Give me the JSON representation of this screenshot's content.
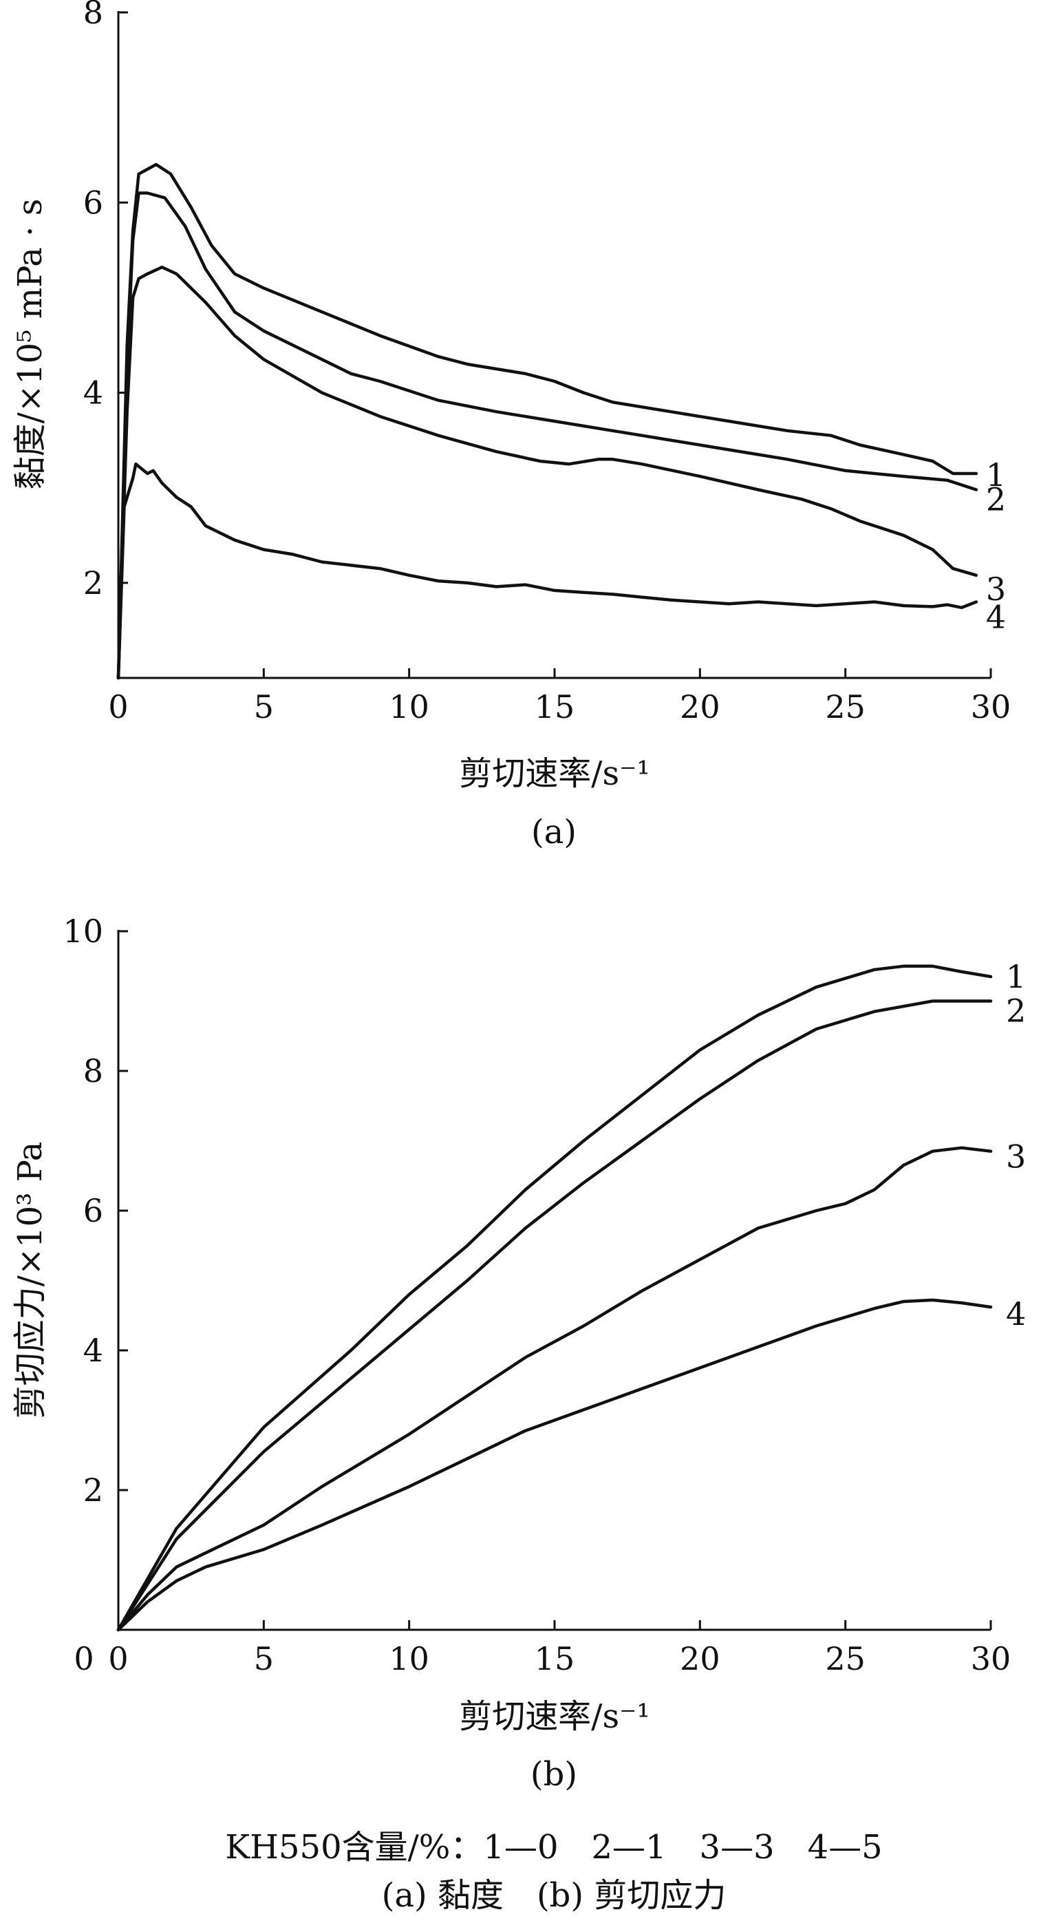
{
  "chart_data": [
    {
      "panel": "(a)",
      "type": "line",
      "xlabel": "剪切速率/s⁻¹",
      "ylabel": "黏度/×10⁵ mPa · s",
      "xlim": [
        0,
        30
      ],
      "ylim": [
        1,
        8
      ],
      "xticks": [
        0,
        5,
        10,
        15,
        20,
        25,
        30
      ],
      "yticks": [
        2,
        4,
        6,
        8
      ],
      "series": [
        {
          "name": "1",
          "points": [
            [
              0,
              1.0
            ],
            [
              0.3,
              4.5
            ],
            [
              0.5,
              5.7
            ],
            [
              0.7,
              6.3
            ],
            [
              1.0,
              6.35
            ],
            [
              1.3,
              6.4
            ],
            [
              1.8,
              6.3
            ],
            [
              2.5,
              5.95
            ],
            [
              3.2,
              5.55
            ],
            [
              4.0,
              5.25
            ],
            [
              5.0,
              5.1
            ],
            [
              7.0,
              4.85
            ],
            [
              9.0,
              4.6
            ],
            [
              11.0,
              4.38
            ],
            [
              12.0,
              4.3
            ],
            [
              14.0,
              4.2
            ],
            [
              15.0,
              4.12
            ],
            [
              16.0,
              4.0
            ],
            [
              17.0,
              3.9
            ],
            [
              19.0,
              3.8
            ],
            [
              21.0,
              3.7
            ],
            [
              23.0,
              3.6
            ],
            [
              24.5,
              3.55
            ],
            [
              25.5,
              3.45
            ],
            [
              27.0,
              3.35
            ],
            [
              28.0,
              3.28
            ],
            [
              28.7,
              3.15
            ],
            [
              29.5,
              3.15
            ]
          ]
        },
        {
          "name": "2",
          "points": [
            [
              0,
              1.0
            ],
            [
              0.3,
              4.3
            ],
            [
              0.5,
              5.6
            ],
            [
              0.7,
              6.1
            ],
            [
              1.0,
              6.1
            ],
            [
              1.6,
              6.05
            ],
            [
              2.3,
              5.75
            ],
            [
              3.0,
              5.3
            ],
            [
              4.0,
              4.85
            ],
            [
              5.0,
              4.65
            ],
            [
              7.0,
              4.35
            ],
            [
              8.0,
              4.2
            ],
            [
              9.0,
              4.12
            ],
            [
              11.0,
              3.92
            ],
            [
              13.0,
              3.8
            ],
            [
              15.0,
              3.7
            ],
            [
              17.0,
              3.6
            ],
            [
              19.0,
              3.5
            ],
            [
              21.0,
              3.4
            ],
            [
              23.0,
              3.3
            ],
            [
              25.0,
              3.18
            ],
            [
              27.0,
              3.12
            ],
            [
              28.5,
              3.08
            ],
            [
              29.5,
              2.98
            ]
          ]
        },
        {
          "name": "3",
          "points": [
            [
              0,
              1.0
            ],
            [
              0.3,
              3.8
            ],
            [
              0.5,
              5.0
            ],
            [
              0.7,
              5.2
            ],
            [
              1.0,
              5.25
            ],
            [
              1.5,
              5.32
            ],
            [
              2.0,
              5.25
            ],
            [
              3.0,
              4.95
            ],
            [
              4.0,
              4.6
            ],
            [
              5.0,
              4.35
            ],
            [
              7.0,
              4.0
            ],
            [
              9.0,
              3.75
            ],
            [
              11.0,
              3.55
            ],
            [
              13.0,
              3.38
            ],
            [
              14.5,
              3.28
            ],
            [
              15.5,
              3.25
            ],
            [
              16.5,
              3.3
            ],
            [
              17.0,
              3.3
            ],
            [
              18.0,
              3.25
            ],
            [
              20.0,
              3.12
            ],
            [
              22.0,
              2.98
            ],
            [
              23.5,
              2.88
            ],
            [
              24.5,
              2.78
            ],
            [
              25.5,
              2.65
            ],
            [
              27.0,
              2.5
            ],
            [
              28.0,
              2.35
            ],
            [
              28.7,
              2.15
            ],
            [
              29.5,
              2.08
            ]
          ]
        },
        {
          "name": "4",
          "points": [
            [
              0,
              1.0
            ],
            [
              0.2,
              2.8
            ],
            [
              0.5,
              3.1
            ],
            [
              0.6,
              3.25
            ],
            [
              1.0,
              3.15
            ],
            [
              1.2,
              3.18
            ],
            [
              1.5,
              3.05
            ],
            [
              2.0,
              2.9
            ],
            [
              2.5,
              2.8
            ],
            [
              3.0,
              2.6
            ],
            [
              4.0,
              2.45
            ],
            [
              5.0,
              2.35
            ],
            [
              6.0,
              2.3
            ],
            [
              7.0,
              2.22
            ],
            [
              9.0,
              2.15
            ],
            [
              10.0,
              2.08
            ],
            [
              11.0,
              2.02
            ],
            [
              12.0,
              2.0
            ],
            [
              13.0,
              1.96
            ],
            [
              14.0,
              1.98
            ],
            [
              15.0,
              1.92
            ],
            [
              16.0,
              1.9
            ],
            [
              17.0,
              1.88
            ],
            [
              18.0,
              1.85
            ],
            [
              19.0,
              1.82
            ],
            [
              20.0,
              1.8
            ],
            [
              21.0,
              1.78
            ],
            [
              22.0,
              1.8
            ],
            [
              23.0,
              1.78
            ],
            [
              24.0,
              1.76
            ],
            [
              25.0,
              1.78
            ],
            [
              26.0,
              1.8
            ],
            [
              27.0,
              1.76
            ],
            [
              28.0,
              1.75
            ],
            [
              28.5,
              1.77
            ],
            [
              29.0,
              1.74
            ],
            [
              29.5,
              1.8
            ]
          ]
        }
      ]
    },
    {
      "panel": "(b)",
      "type": "line",
      "xlabel": "剪切速率/s⁻¹",
      "ylabel": "剪切应力/×10³ Pa",
      "xlim": [
        0,
        30
      ],
      "ylim": [
        0,
        10
      ],
      "xticks": [
        0,
        5,
        10,
        15,
        20,
        25,
        30
      ],
      "yticks": [
        0,
        2,
        4,
        6,
        8,
        10
      ],
      "series": [
        {
          "name": "1",
          "points": [
            [
              0,
              0
            ],
            [
              2,
              1.45
            ],
            [
              5,
              2.9
            ],
            [
              8,
              4.0
            ],
            [
              10,
              4.8
            ],
            [
              12,
              5.5
            ],
            [
              14,
              6.3
            ],
            [
              16,
              7.0
            ],
            [
              18,
              7.65
            ],
            [
              20,
              8.3
            ],
            [
              22,
              8.8
            ],
            [
              24,
              9.2
            ],
            [
              26,
              9.45
            ],
            [
              27,
              9.5
            ],
            [
              28,
              9.5
            ],
            [
              29,
              9.42
            ],
            [
              30,
              9.35
            ]
          ]
        },
        {
          "name": "2",
          "points": [
            [
              0,
              0
            ],
            [
              2,
              1.3
            ],
            [
              5,
              2.55
            ],
            [
              8,
              3.6
            ],
            [
              10,
              4.3
            ],
            [
              12,
              5.0
            ],
            [
              14,
              5.75
            ],
            [
              16,
              6.4
            ],
            [
              18,
              7.0
            ],
            [
              20,
              7.6
            ],
            [
              22,
              8.15
            ],
            [
              24,
              8.6
            ],
            [
              26,
              8.85
            ],
            [
              28,
              9.0
            ],
            [
              30,
              9.0
            ]
          ]
        },
        {
          "name": "3",
          "points": [
            [
              0,
              0
            ],
            [
              1,
              0.5
            ],
            [
              2,
              0.9
            ],
            [
              3,
              1.1
            ],
            [
              5,
              1.5
            ],
            [
              7,
              2.05
            ],
            [
              10,
              2.8
            ],
            [
              12,
              3.35
            ],
            [
              14,
              3.9
            ],
            [
              16,
              4.35
            ],
            [
              18,
              4.85
            ],
            [
              20,
              5.3
            ],
            [
              22,
              5.75
            ],
            [
              24,
              6.0
            ],
            [
              25,
              6.1
            ],
            [
              26,
              6.3
            ],
            [
              27,
              6.65
            ],
            [
              28,
              6.85
            ],
            [
              29,
              6.9
            ],
            [
              30,
              6.85
            ]
          ]
        },
        {
          "name": "4",
          "points": [
            [
              0,
              0
            ],
            [
              1,
              0.4
            ],
            [
              2,
              0.7
            ],
            [
              3,
              0.9
            ],
            [
              5,
              1.15
            ],
            [
              7,
              1.5
            ],
            [
              10,
              2.05
            ],
            [
              12,
              2.45
            ],
            [
              14,
              2.85
            ],
            [
              16,
              3.15
            ],
            [
              18,
              3.45
            ],
            [
              20,
              3.75
            ],
            [
              22,
              4.05
            ],
            [
              24,
              4.35
            ],
            [
              26,
              4.6
            ],
            [
              27,
              4.7
            ],
            [
              28,
              4.72
            ],
            [
              29,
              4.68
            ],
            [
              30,
              4.62
            ]
          ]
        }
      ]
    }
  ],
  "legend_text": "KH550含量/%：1—0　2—1　3—3　4—5",
  "figure_caption": "(a) 黏度　(b) 剪切应力"
}
